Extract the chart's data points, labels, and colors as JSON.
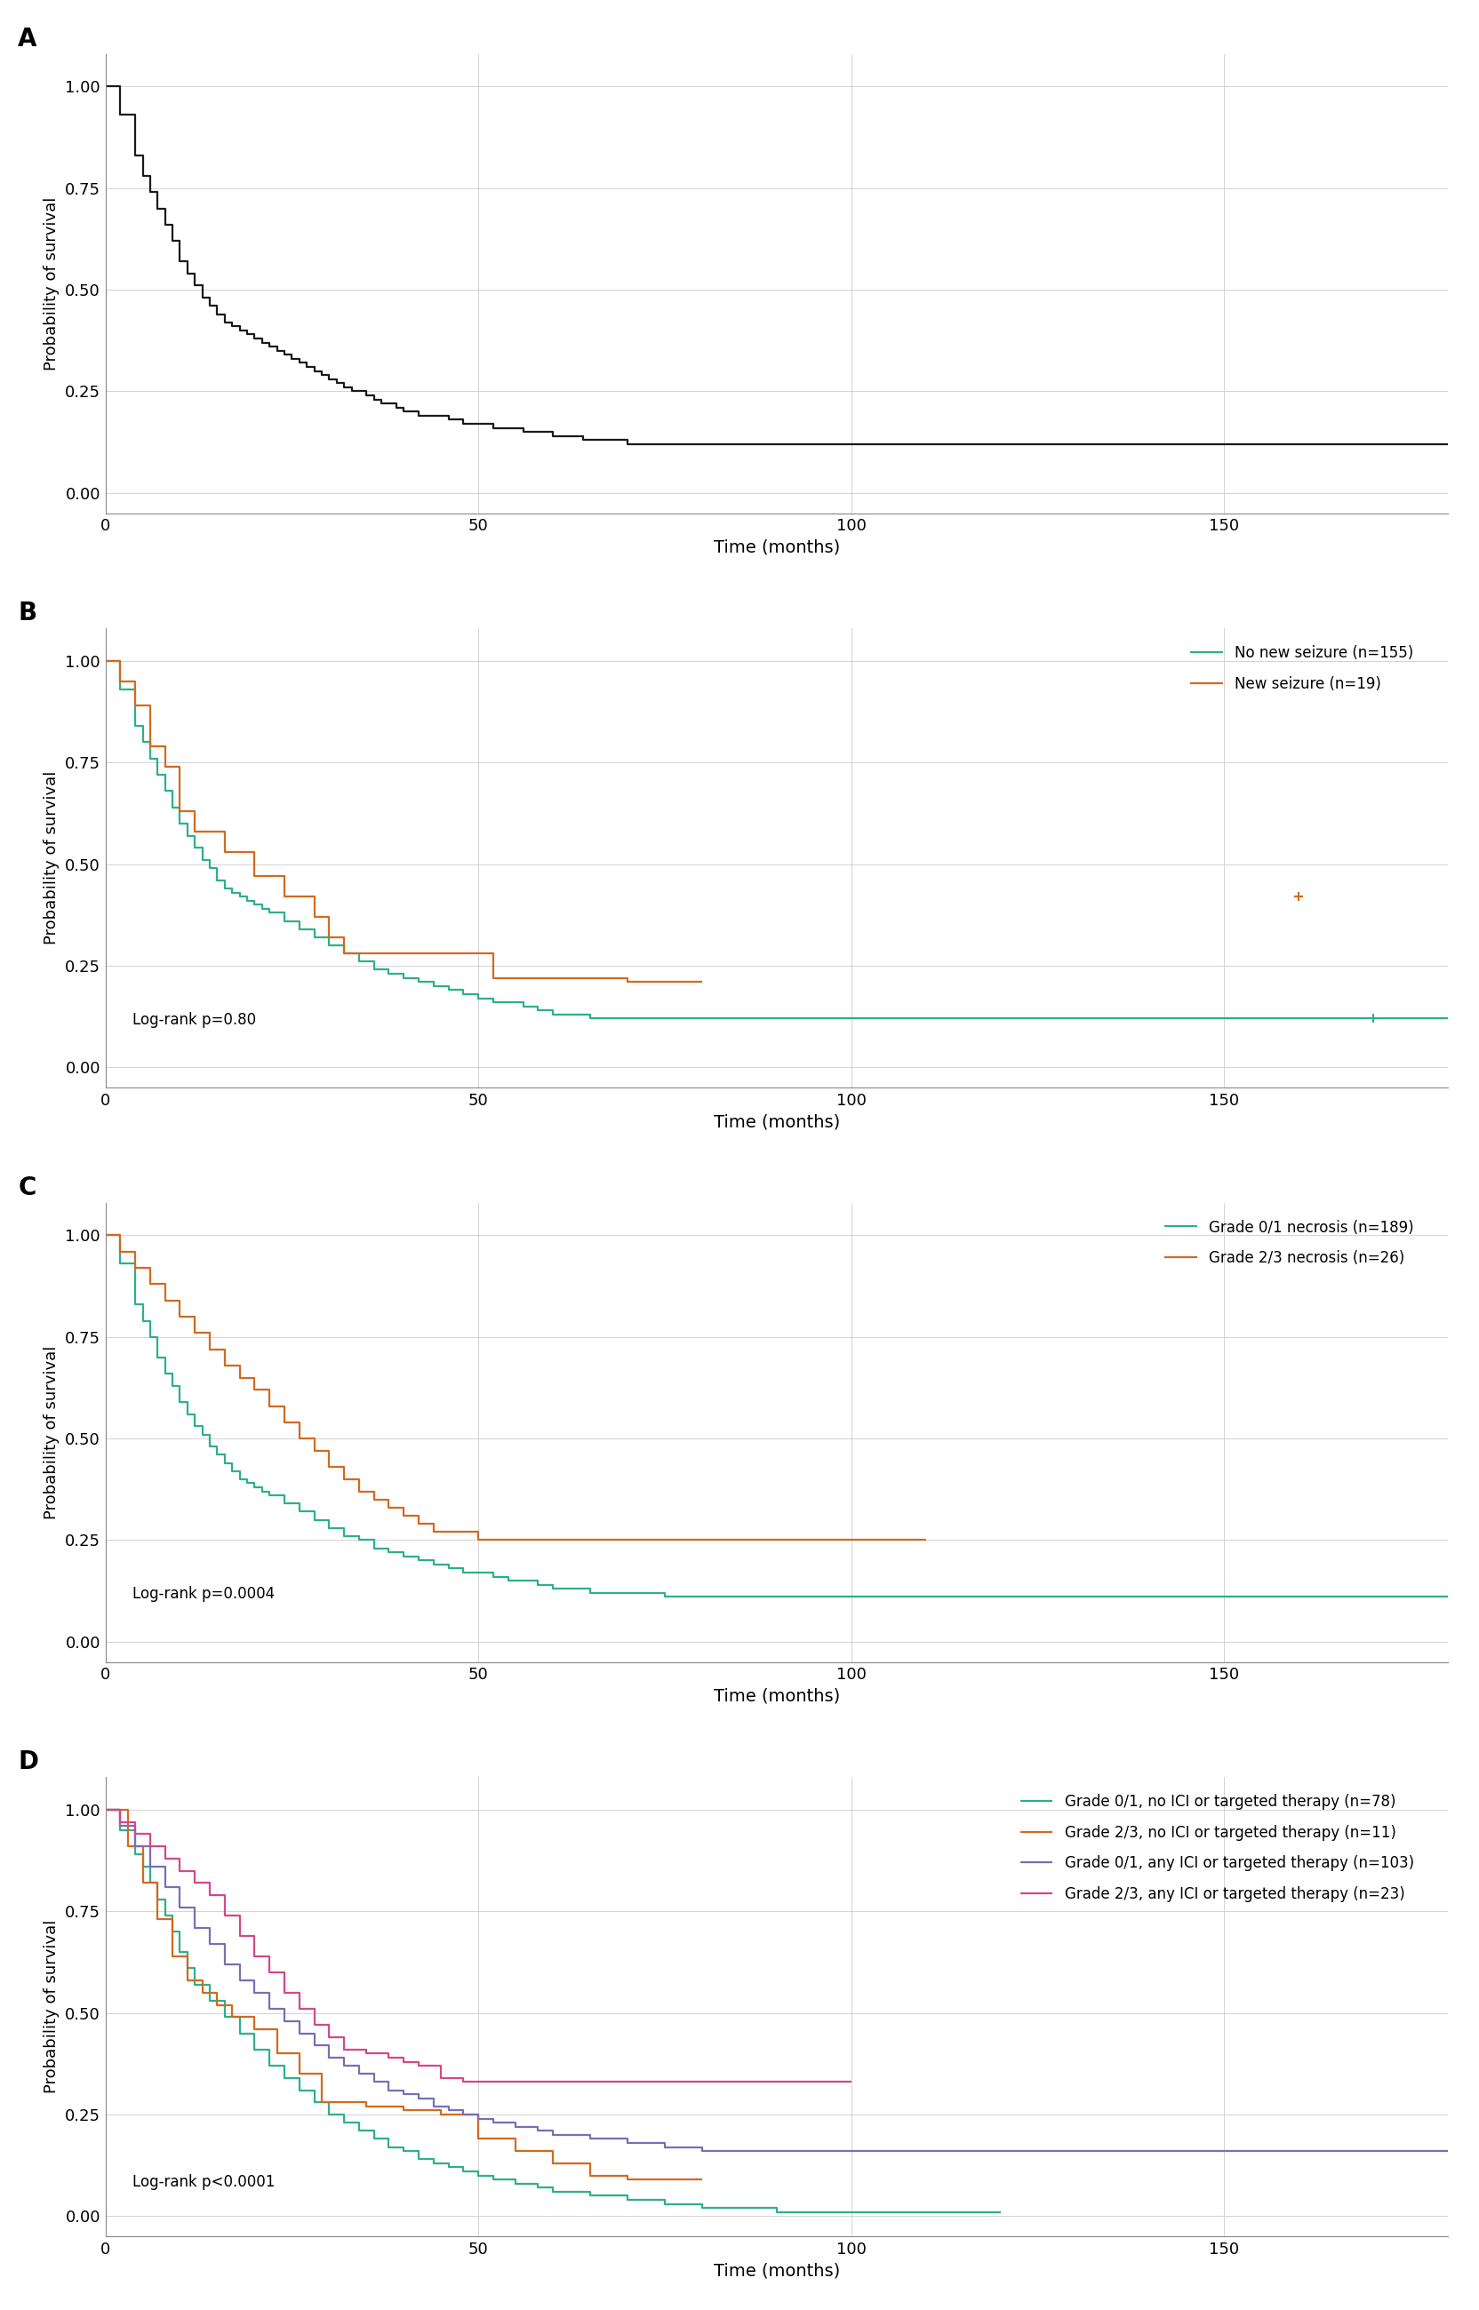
{
  "panel_labels": [
    "A",
    "B",
    "C",
    "D"
  ],
  "ylabel": "Probability of survival",
  "xlabel": "Time (months)",
  "xlim": [
    0,
    180
  ],
  "ylim": [
    -0.05,
    1.08
  ],
  "yticks": [
    0.0,
    0.25,
    0.5,
    0.75,
    1.0
  ],
  "xticks": [
    0,
    50,
    100,
    150
  ],
  "background_color": "#ffffff",
  "grid_color": "#cccccc",
  "colors": {
    "black": "#1a1a1a",
    "green": "#2db08a",
    "orange": "#d4691e",
    "purple": "#7b6db5",
    "pink": "#d4478a"
  },
  "panelA": {
    "km_times": [
      0,
      2,
      4,
      5,
      6,
      7,
      8,
      9,
      10,
      11,
      12,
      13,
      14,
      15,
      16,
      17,
      18,
      19,
      20,
      21,
      22,
      23,
      24,
      25,
      26,
      27,
      28,
      29,
      30,
      31,
      32,
      33,
      34,
      35,
      36,
      37,
      38,
      39,
      40,
      41,
      42,
      44,
      46,
      48,
      50,
      52,
      54,
      56,
      58,
      60,
      62,
      64,
      66,
      68,
      70,
      72,
      75,
      80,
      90,
      100,
      120,
      150,
      180
    ],
    "km_surv": [
      1.0,
      0.93,
      0.83,
      0.78,
      0.74,
      0.7,
      0.66,
      0.62,
      0.57,
      0.54,
      0.51,
      0.48,
      0.46,
      0.44,
      0.42,
      0.41,
      0.4,
      0.39,
      0.38,
      0.37,
      0.36,
      0.35,
      0.34,
      0.33,
      0.32,
      0.31,
      0.3,
      0.29,
      0.28,
      0.27,
      0.26,
      0.25,
      0.25,
      0.24,
      0.23,
      0.22,
      0.22,
      0.21,
      0.2,
      0.2,
      0.19,
      0.19,
      0.18,
      0.17,
      0.17,
      0.16,
      0.16,
      0.15,
      0.15,
      0.14,
      0.14,
      0.13,
      0.13,
      0.13,
      0.12,
      0.12,
      0.12,
      0.12,
      0.12,
      0.12,
      0.12,
      0.12,
      0.12
    ]
  },
  "panelB": {
    "logrank_p": "Log-rank p=0.80",
    "series": [
      {
        "label": "No new seizure (n=155)",
        "color": "#2db08a",
        "times": [
          0,
          2,
          4,
          5,
          6,
          7,
          8,
          9,
          10,
          11,
          12,
          13,
          14,
          15,
          16,
          17,
          18,
          19,
          20,
          21,
          22,
          24,
          26,
          28,
          30,
          32,
          34,
          36,
          38,
          40,
          42,
          44,
          46,
          48,
          50,
          52,
          54,
          56,
          58,
          60,
          62,
          65,
          70,
          75,
          80,
          90,
          100,
          150,
          180
        ],
        "surv": [
          1.0,
          0.93,
          0.84,
          0.8,
          0.76,
          0.72,
          0.68,
          0.64,
          0.6,
          0.57,
          0.54,
          0.51,
          0.49,
          0.46,
          0.44,
          0.43,
          0.42,
          0.41,
          0.4,
          0.39,
          0.38,
          0.36,
          0.34,
          0.32,
          0.3,
          0.28,
          0.26,
          0.24,
          0.23,
          0.22,
          0.21,
          0.2,
          0.19,
          0.18,
          0.17,
          0.16,
          0.16,
          0.15,
          0.14,
          0.13,
          0.13,
          0.12,
          0.12,
          0.12,
          0.12,
          0.12,
          0.12,
          0.12,
          0.12
        ],
        "censor_times": [
          170
        ],
        "censor_surv": [
          0.12
        ]
      },
      {
        "label": "New seizure (n=19)",
        "color": "#d4691e",
        "times": [
          0,
          2,
          4,
          6,
          8,
          10,
          12,
          16,
          20,
          24,
          28,
          30,
          32,
          36,
          40,
          44,
          48,
          52,
          56,
          60,
          65,
          70,
          80
        ],
        "surv": [
          1.0,
          0.95,
          0.89,
          0.79,
          0.74,
          0.63,
          0.58,
          0.53,
          0.47,
          0.42,
          0.37,
          0.32,
          0.28,
          0.28,
          0.28,
          0.28,
          0.28,
          0.22,
          0.22,
          0.22,
          0.22,
          0.21,
          0.21
        ],
        "censor_times": [
          160
        ],
        "censor_surv": [
          0.42
        ]
      }
    ]
  },
  "panelC": {
    "logrank_p": "Log-rank p=0.0004",
    "series": [
      {
        "label": "Grade 0/1 necrosis (n=189)",
        "color": "#2db08a",
        "times": [
          0,
          2,
          4,
          5,
          6,
          7,
          8,
          9,
          10,
          11,
          12,
          13,
          14,
          15,
          16,
          17,
          18,
          19,
          20,
          21,
          22,
          24,
          26,
          28,
          30,
          32,
          34,
          36,
          38,
          40,
          42,
          44,
          46,
          48,
          50,
          52,
          54,
          56,
          58,
          60,
          65,
          70,
          75,
          80,
          90,
          100,
          150,
          180
        ],
        "surv": [
          1.0,
          0.93,
          0.83,
          0.79,
          0.75,
          0.7,
          0.66,
          0.63,
          0.59,
          0.56,
          0.53,
          0.51,
          0.48,
          0.46,
          0.44,
          0.42,
          0.4,
          0.39,
          0.38,
          0.37,
          0.36,
          0.34,
          0.32,
          0.3,
          0.28,
          0.26,
          0.25,
          0.23,
          0.22,
          0.21,
          0.2,
          0.19,
          0.18,
          0.17,
          0.17,
          0.16,
          0.15,
          0.15,
          0.14,
          0.13,
          0.12,
          0.12,
          0.11,
          0.11,
          0.11,
          0.11,
          0.11,
          0.11
        ]
      },
      {
        "label": "Grade 2/3 necrosis (n=26)",
        "color": "#d4691e",
        "times": [
          0,
          2,
          4,
          6,
          8,
          10,
          12,
          14,
          16,
          18,
          20,
          22,
          24,
          26,
          28,
          30,
          32,
          34,
          36,
          38,
          40,
          42,
          44,
          46,
          48,
          50,
          55,
          60,
          65,
          70,
          75,
          80,
          100,
          110
        ],
        "surv": [
          1.0,
          0.96,
          0.92,
          0.88,
          0.84,
          0.8,
          0.76,
          0.72,
          0.68,
          0.65,
          0.62,
          0.58,
          0.54,
          0.5,
          0.47,
          0.43,
          0.4,
          0.37,
          0.35,
          0.33,
          0.31,
          0.29,
          0.27,
          0.27,
          0.27,
          0.25,
          0.25,
          0.25,
          0.25,
          0.25,
          0.25,
          0.25,
          0.25,
          0.25
        ]
      }
    ]
  },
  "panelD": {
    "logrank_p": "Log-rank p<0.0001",
    "series": [
      {
        "label": "Grade 0/1, no ICI or targeted therapy (n=78)",
        "color": "#2db08a",
        "times": [
          0,
          2,
          4,
          5,
          6,
          7,
          8,
          9,
          10,
          11,
          12,
          14,
          16,
          18,
          20,
          22,
          24,
          26,
          28,
          30,
          32,
          34,
          36,
          38,
          40,
          42,
          44,
          46,
          48,
          50,
          52,
          55,
          58,
          60,
          65,
          70,
          75,
          80,
          85,
          90,
          95,
          100,
          110,
          120
        ],
        "surv": [
          1.0,
          0.95,
          0.89,
          0.86,
          0.82,
          0.78,
          0.74,
          0.7,
          0.65,
          0.61,
          0.57,
          0.53,
          0.49,
          0.45,
          0.41,
          0.37,
          0.34,
          0.31,
          0.28,
          0.25,
          0.23,
          0.21,
          0.19,
          0.17,
          0.16,
          0.14,
          0.13,
          0.12,
          0.11,
          0.1,
          0.09,
          0.08,
          0.07,
          0.06,
          0.05,
          0.04,
          0.03,
          0.02,
          0.02,
          0.01,
          0.01,
          0.01,
          0.01,
          0.01
        ]
      },
      {
        "label": "Grade 2/3, no ICI or targeted therapy (n=11)",
        "color": "#d4691e",
        "times": [
          0,
          3,
          5,
          7,
          9,
          11,
          13,
          15,
          17,
          20,
          23,
          26,
          29,
          32,
          35,
          40,
          45,
          50,
          55,
          60,
          65,
          70,
          75,
          80
        ],
        "surv": [
          1.0,
          0.91,
          0.82,
          0.73,
          0.64,
          0.58,
          0.55,
          0.52,
          0.49,
          0.46,
          0.4,
          0.35,
          0.28,
          0.28,
          0.27,
          0.26,
          0.25,
          0.19,
          0.16,
          0.13,
          0.1,
          0.09,
          0.09,
          0.09
        ]
      },
      {
        "label": "Grade 0/1, any ICI or targeted therapy (n=103)",
        "color": "#7b6db5",
        "times": [
          0,
          2,
          4,
          6,
          8,
          10,
          12,
          14,
          16,
          18,
          20,
          22,
          24,
          26,
          28,
          30,
          32,
          34,
          36,
          38,
          40,
          42,
          44,
          46,
          48,
          50,
          52,
          55,
          58,
          60,
          65,
          70,
          75,
          80,
          90,
          100,
          120,
          150,
          180
        ],
        "surv": [
          1.0,
          0.96,
          0.91,
          0.86,
          0.81,
          0.76,
          0.71,
          0.67,
          0.62,
          0.58,
          0.55,
          0.51,
          0.48,
          0.45,
          0.42,
          0.39,
          0.37,
          0.35,
          0.33,
          0.31,
          0.3,
          0.29,
          0.27,
          0.26,
          0.25,
          0.24,
          0.23,
          0.22,
          0.21,
          0.2,
          0.19,
          0.18,
          0.17,
          0.16,
          0.16,
          0.16,
          0.16,
          0.16,
          0.16
        ]
      },
      {
        "label": "Grade 2/3, any ICI or targeted therapy (n=23)",
        "color": "#d4478a",
        "times": [
          0,
          2,
          4,
          6,
          8,
          10,
          12,
          14,
          16,
          18,
          20,
          22,
          24,
          26,
          28,
          30,
          32,
          35,
          38,
          40,
          42,
          45,
          48,
          50,
          55,
          60,
          65,
          70,
          75,
          80,
          90,
          100
        ],
        "surv": [
          1.0,
          0.97,
          0.94,
          0.91,
          0.88,
          0.85,
          0.82,
          0.79,
          0.74,
          0.69,
          0.64,
          0.6,
          0.55,
          0.51,
          0.47,
          0.44,
          0.41,
          0.4,
          0.39,
          0.38,
          0.37,
          0.34,
          0.33,
          0.33,
          0.33,
          0.33,
          0.33,
          0.33,
          0.33,
          0.33,
          0.33,
          0.33
        ]
      }
    ]
  }
}
